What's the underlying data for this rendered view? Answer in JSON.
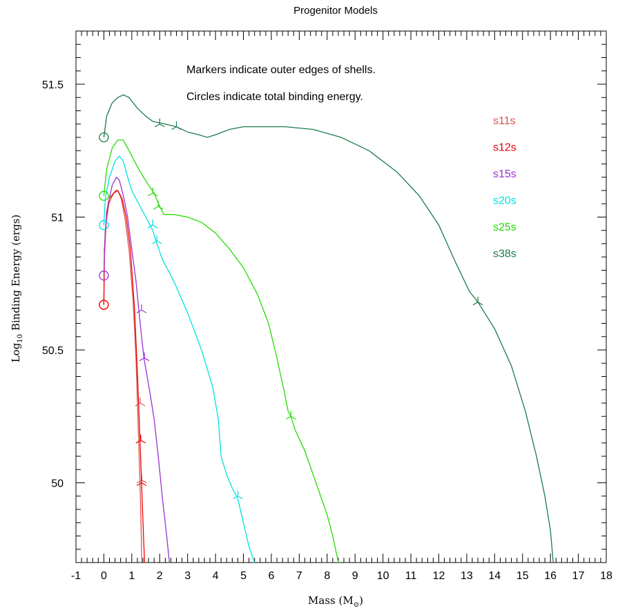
{
  "chart_data": {
    "type": "line",
    "title": "Progenitor Models",
    "xlabel": "Mass (M",
    "xlabel_symbol": "⊙",
    "xlabel_suffix": ")",
    "ylabel_prefix": "Log",
    "ylabel_sub": "10",
    "ylabel_suffix": " Binding Energy (ergs)",
    "xlim": [
      -1,
      18
    ],
    "ylim": [
      49.7,
      51.7
    ],
    "x_ticks": [
      -1,
      0,
      1,
      2,
      3,
      4,
      5,
      6,
      7,
      8,
      9,
      10,
      11,
      12,
      13,
      14,
      15,
      16,
      17,
      18
    ],
    "y_ticks": [
      50,
      50.5,
      51,
      51.5
    ],
    "x_tick_labels": [
      "-1",
      "0",
      "1",
      "2",
      "3",
      "4",
      "5",
      "6",
      "7",
      "8",
      "9",
      "10",
      "11",
      "12",
      "13",
      "14",
      "15",
      "16",
      "17",
      "18"
    ],
    "y_tick_labels": [
      "50",
      "50.5",
      "51",
      "51.5"
    ],
    "annotations": [
      "Markers indicate outer edges of shells.",
      "Circles indicate total binding energy."
    ],
    "legend_position": "top-right",
    "series": [
      {
        "name": "s11s",
        "color": "#d9534f",
        "circle": [
          0,
          50.67
        ],
        "points": [
          [
            0,
            50.67
          ],
          [
            0.02,
            50.85
          ],
          [
            0.08,
            50.98
          ],
          [
            0.18,
            51.05
          ],
          [
            0.3,
            51.08
          ],
          [
            0.42,
            51.1
          ],
          [
            0.5,
            51.1
          ],
          [
            0.62,
            51.07
          ],
          [
            0.75,
            51.0
          ],
          [
            0.9,
            50.88
          ],
          [
            1.05,
            50.68
          ],
          [
            1.15,
            50.47
          ],
          [
            1.22,
            50.25
          ],
          [
            1.28,
            50.05
          ],
          [
            1.33,
            49.85
          ],
          [
            1.36,
            49.7
          ]
        ],
        "markers": [
          [
            1.3,
            50.3
          ],
          [
            1.32,
            50.16
          ],
          [
            1.36,
            50.01
          ]
        ]
      },
      {
        "name": "s12s",
        "color": "#ee0000",
        "circle": [
          0,
          50.67
        ],
        "points": [
          [
            0,
            50.67
          ],
          [
            0.02,
            50.88
          ],
          [
            0.1,
            51.02
          ],
          [
            0.2,
            51.07
          ],
          [
            0.35,
            51.09
          ],
          [
            0.5,
            51.1
          ],
          [
            0.65,
            51.07
          ],
          [
            0.8,
            51.0
          ],
          [
            0.95,
            50.88
          ],
          [
            1.1,
            50.65
          ],
          [
            1.2,
            50.42
          ],
          [
            1.28,
            50.2
          ],
          [
            1.35,
            50.0
          ],
          [
            1.42,
            49.8
          ],
          [
            1.46,
            49.7
          ]
        ],
        "markers": [
          [
            1.32,
            50.16
          ],
          [
            1.35,
            50.0
          ]
        ]
      },
      {
        "name": "s15s",
        "color": "#9b30d0",
        "circle": [
          0,
          50.78
        ],
        "points": [
          [
            0,
            50.78
          ],
          [
            0.05,
            50.95
          ],
          [
            0.15,
            51.05
          ],
          [
            0.3,
            51.12
          ],
          [
            0.45,
            51.15
          ],
          [
            0.55,
            51.14
          ],
          [
            0.7,
            51.08
          ],
          [
            0.85,
            51.0
          ],
          [
            1.0,
            50.88
          ],
          [
            1.15,
            50.76
          ],
          [
            1.28,
            50.62
          ],
          [
            1.38,
            50.52
          ],
          [
            1.45,
            50.46
          ],
          [
            1.55,
            50.4
          ],
          [
            1.65,
            50.34
          ],
          [
            1.8,
            50.24
          ],
          [
            1.95,
            50.1
          ],
          [
            2.1,
            49.94
          ],
          [
            2.25,
            49.8
          ],
          [
            2.35,
            49.7
          ]
        ],
        "markers": [
          [
            1.35,
            50.65
          ],
          [
            1.45,
            50.47
          ]
        ]
      },
      {
        "name": "s20s",
        "color": "#00e0e0",
        "circle": [
          0,
          50.97
        ],
        "points": [
          [
            0,
            50.97
          ],
          [
            0.05,
            51.07
          ],
          [
            0.2,
            51.15
          ],
          [
            0.4,
            51.21
          ],
          [
            0.55,
            51.23
          ],
          [
            0.7,
            51.21
          ],
          [
            0.85,
            51.15
          ],
          [
            1.0,
            51.1
          ],
          [
            1.2,
            51.06
          ],
          [
            1.5,
            51.0
          ],
          [
            1.75,
            50.95
          ],
          [
            1.9,
            50.9
          ],
          [
            2.1,
            50.84
          ],
          [
            2.5,
            50.76
          ],
          [
            3.0,
            50.64
          ],
          [
            3.5,
            50.5
          ],
          [
            3.9,
            50.36
          ],
          [
            4.1,
            50.24
          ],
          [
            4.2,
            50.1
          ],
          [
            4.4,
            50.03
          ],
          [
            4.6,
            49.98
          ],
          [
            4.8,
            49.94
          ],
          [
            5.0,
            49.85
          ],
          [
            5.2,
            49.76
          ],
          [
            5.4,
            49.7
          ]
        ],
        "markers": [
          [
            1.75,
            50.97
          ],
          [
            1.9,
            50.91
          ],
          [
            4.8,
            49.95
          ]
        ]
      },
      {
        "name": "s25s",
        "color": "#22dd00",
        "circle": [
          0,
          51.08
        ],
        "points": [
          [
            0,
            51.08
          ],
          [
            0.1,
            51.18
          ],
          [
            0.3,
            51.26
          ],
          [
            0.5,
            51.29
          ],
          [
            0.7,
            51.29
          ],
          [
            0.9,
            51.25
          ],
          [
            1.1,
            51.21
          ],
          [
            1.3,
            51.17
          ],
          [
            1.6,
            51.12
          ],
          [
            1.8,
            51.09
          ],
          [
            2.0,
            51.04
          ],
          [
            2.15,
            51.01
          ],
          [
            2.5,
            51.01
          ],
          [
            3.0,
            51.0
          ],
          [
            3.5,
            50.98
          ],
          [
            4.0,
            50.94
          ],
          [
            4.5,
            50.88
          ],
          [
            5.0,
            50.81
          ],
          [
            5.5,
            50.71
          ],
          [
            5.9,
            50.6
          ],
          [
            6.2,
            50.47
          ],
          [
            6.45,
            50.35
          ],
          [
            6.6,
            50.27
          ],
          [
            6.7,
            50.25
          ],
          [
            6.85,
            50.2
          ],
          [
            7.2,
            50.12
          ],
          [
            7.6,
            50.0
          ],
          [
            8.0,
            49.88
          ],
          [
            8.2,
            49.8
          ],
          [
            8.4,
            49.7
          ]
        ],
        "markers": [
          [
            1.75,
            51.09
          ],
          [
            1.95,
            51.04
          ],
          [
            6.7,
            50.25
          ]
        ]
      },
      {
        "name": "s38s",
        "color": "#1a7a4a",
        "circle": [
          0,
          51.3
        ],
        "points": [
          [
            0,
            51.3
          ],
          [
            0.1,
            51.38
          ],
          [
            0.3,
            51.43
          ],
          [
            0.5,
            51.45
          ],
          [
            0.7,
            51.46
          ],
          [
            0.9,
            51.45
          ],
          [
            1.2,
            51.41
          ],
          [
            1.5,
            51.38
          ],
          [
            1.75,
            51.36
          ],
          [
            2.2,
            51.35
          ],
          [
            2.6,
            51.34
          ],
          [
            3.0,
            51.32
          ],
          [
            3.4,
            51.31
          ],
          [
            3.7,
            51.3
          ],
          [
            4.0,
            51.31
          ],
          [
            4.5,
            51.33
          ],
          [
            5.0,
            51.34
          ],
          [
            5.7,
            51.34
          ],
          [
            6.5,
            51.34
          ],
          [
            7.5,
            51.33
          ],
          [
            8.5,
            51.3
          ],
          [
            9.5,
            51.25
          ],
          [
            10.5,
            51.17
          ],
          [
            11.3,
            51.08
          ],
          [
            12.0,
            50.97
          ],
          [
            12.6,
            50.83
          ],
          [
            13.1,
            50.72
          ],
          [
            13.4,
            50.68
          ],
          [
            14.0,
            50.58
          ],
          [
            14.6,
            50.44
          ],
          [
            15.1,
            50.27
          ],
          [
            15.5,
            50.1
          ],
          [
            15.8,
            49.95
          ],
          [
            16.0,
            49.82
          ],
          [
            16.1,
            49.7
          ]
        ],
        "markers": [
          [
            2.0,
            51.35
          ],
          [
            2.6,
            51.34
          ],
          [
            13.4,
            50.68
          ]
        ]
      }
    ]
  }
}
